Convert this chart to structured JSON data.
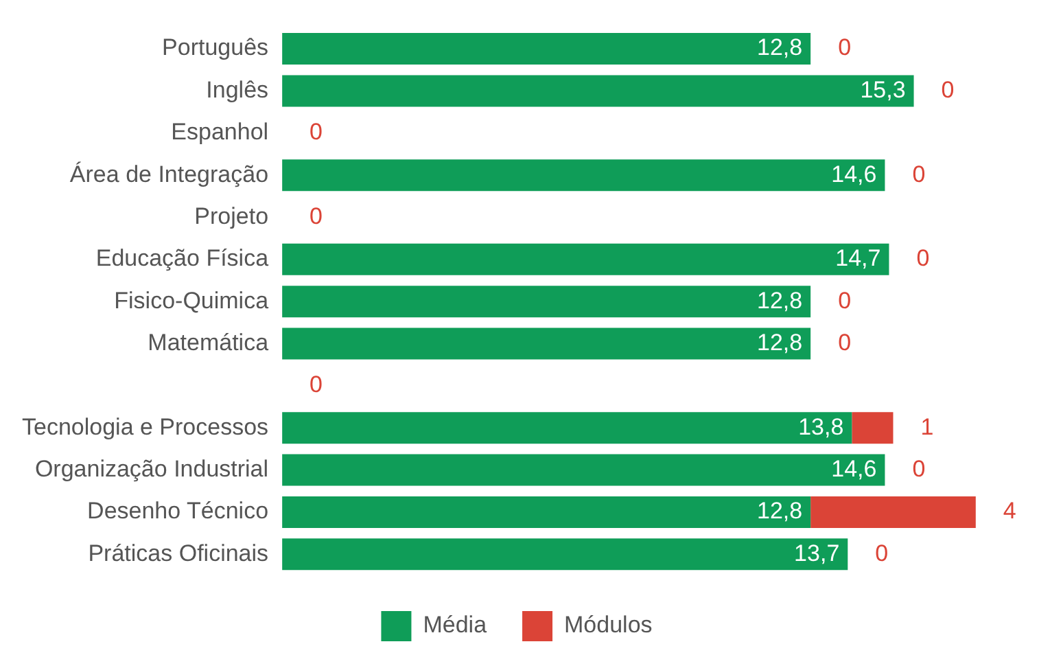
{
  "chart_data": {
    "type": "bar",
    "orientation": "horizontal",
    "stacked": true,
    "grid": false,
    "legend": "bottom",
    "tick_labels": "y",
    "categories": [
      "Português",
      "Inglês",
      "Espanhol",
      "Área de Integração",
      "Projeto",
      "Educação Física",
      "Fisico-Quimica",
      "Matemática",
      null,
      "Tecnologia e Processos",
      "Organização Industrial",
      "Desenho Técnico",
      "Práticas Oficinais"
    ],
    "series": [
      {
        "name": "Média",
        "color": "#0f9d58",
        "values": [
          12.8,
          15.3,
          null,
          14.6,
          null,
          14.7,
          12.8,
          12.8,
          null,
          13.8,
          14.6,
          12.8,
          13.7
        ],
        "value_labels": [
          "12,8",
          "15,3",
          null,
          "14,6",
          null,
          "14,7",
          "12,8",
          "12,8",
          null,
          "13,8",
          "14,6",
          "12,8",
          "13,7"
        ]
      },
      {
        "name": "Módulos",
        "color": "#db4437",
        "values": [
          0,
          0,
          0,
          0,
          0,
          0,
          0,
          0,
          0,
          1,
          0,
          4,
          0
        ],
        "value_labels": [
          "0",
          "0",
          "0",
          "0",
          "0",
          "0",
          "0",
          "0",
          "0",
          "1",
          "0",
          "4",
          "0"
        ]
      }
    ]
  }
}
